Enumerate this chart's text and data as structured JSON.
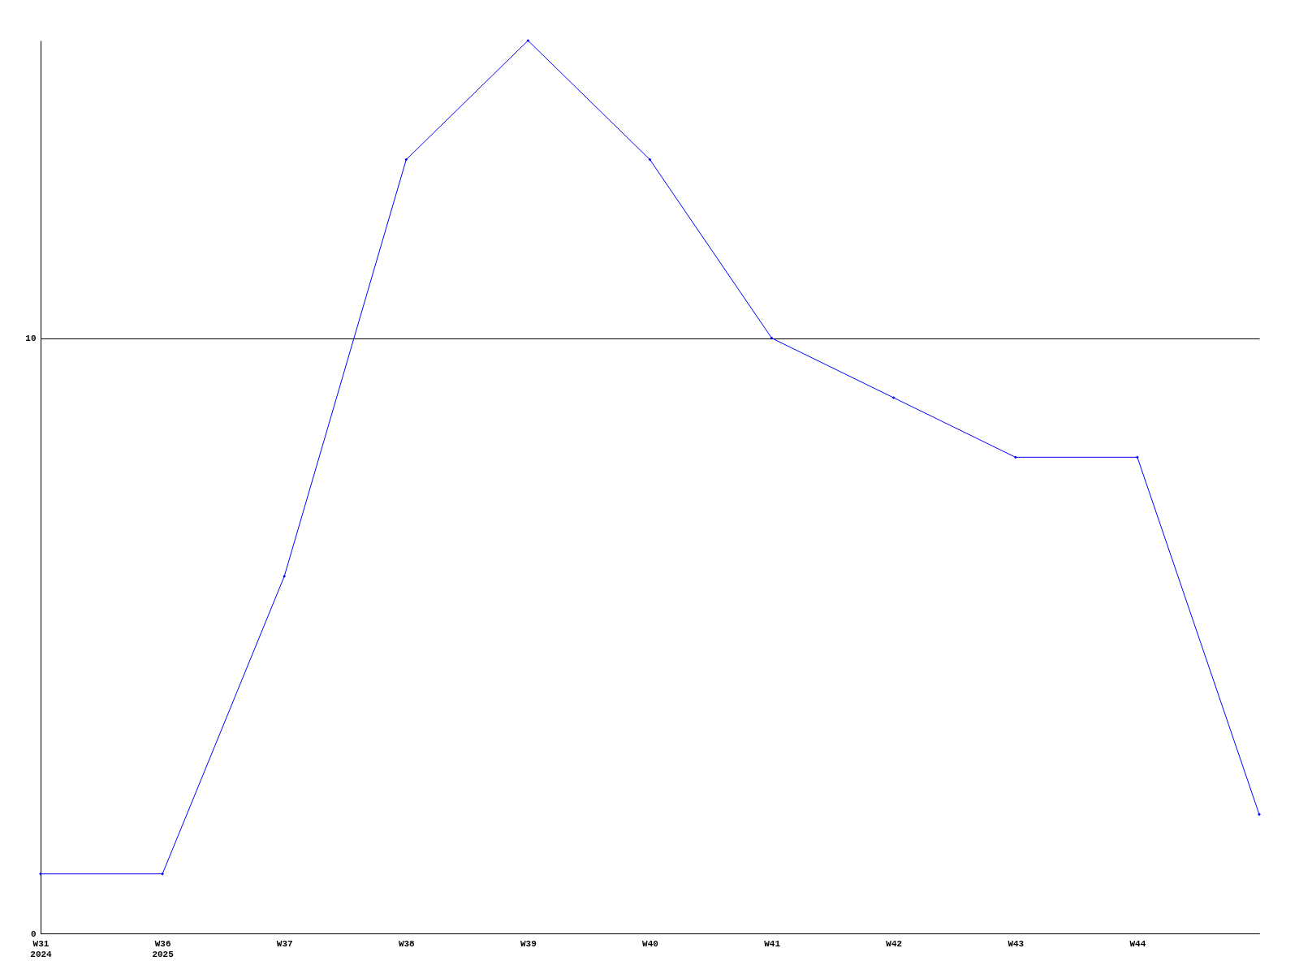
{
  "chart_data": {
    "type": "line",
    "categories": [
      "W31\n2024",
      "W36\n2025",
      "W37",
      "W38",
      "W39",
      "W40",
      "W41",
      "W42",
      "W43",
      "W44",
      null
    ],
    "series": [
      {
        "color": "#0000ff",
        "values": [
          1,
          1,
          6,
          13,
          15,
          13,
          10,
          9,
          8,
          8,
          2
        ]
      }
    ],
    "ylim": [
      0,
      15
    ],
    "yticks": [
      0,
      10
    ],
    "grid": "y",
    "marker": "diamond",
    "line_style": "solid"
  }
}
